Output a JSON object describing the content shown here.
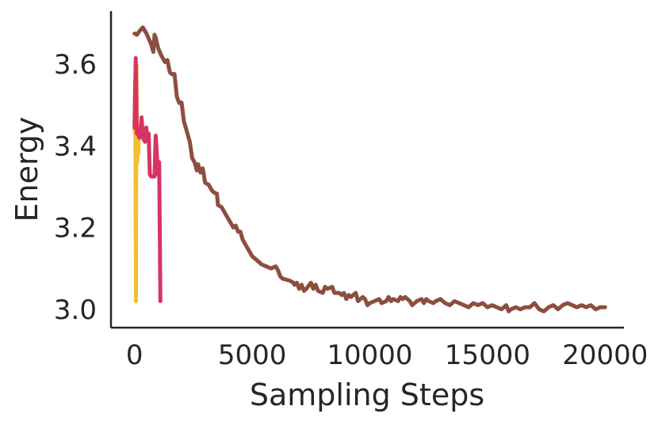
{
  "chart_data": {
    "type": "line",
    "xlabel": "Sampling Steps",
    "ylabel": "Energy",
    "xlim": [
      -1000,
      20800
    ],
    "ylim": [
      2.955,
      3.73
    ],
    "xticks": [
      0,
      5000,
      10000,
      15000,
      20000
    ],
    "yticks": [
      3.0,
      3.2,
      3.4,
      3.6
    ],
    "xtick_labels": [
      "0",
      "5000",
      "10000",
      "15000",
      "20000"
    ],
    "ytick_labels": [
      "3.0",
      "3.2",
      "3.4",
      "3.6"
    ],
    "grid": false,
    "series": [
      {
        "color": "#8c4e3f",
        "points": [
          [
            0,
            3.675
          ],
          [
            100,
            3.672
          ],
          [
            200,
            3.68
          ],
          [
            350,
            3.69
          ],
          [
            500,
            3.676
          ],
          [
            700,
            3.65
          ],
          [
            800,
            3.63
          ],
          [
            850,
            3.672
          ],
          [
            900,
            3.665
          ],
          [
            1000,
            3.64
          ],
          [
            1150,
            3.62
          ],
          [
            1300,
            3.605
          ],
          [
            1400,
            3.61
          ],
          [
            1500,
            3.58
          ],
          [
            1600,
            3.575
          ],
          [
            1700,
            3.576
          ],
          [
            1800,
            3.52
          ],
          [
            1900,
            3.505
          ],
          [
            2000,
            3.506
          ],
          [
            2100,
            3.46
          ],
          [
            2200,
            3.44
          ],
          [
            2350,
            3.41
          ],
          [
            2450,
            3.37
          ],
          [
            2550,
            3.36
          ],
          [
            2650,
            3.34
          ],
          [
            2700,
            3.355
          ],
          [
            2800,
            3.335
          ],
          [
            2900,
            3.345
          ],
          [
            3000,
            3.31
          ],
          [
            3150,
            3.305
          ],
          [
            3300,
            3.29
          ],
          [
            3400,
            3.285
          ],
          [
            3500,
            3.283
          ],
          [
            3550,
            3.255
          ],
          [
            3700,
            3.25
          ],
          [
            3800,
            3.24
          ],
          [
            3900,
            3.23
          ],
          [
            4000,
            3.22
          ],
          [
            4100,
            3.21
          ],
          [
            4200,
            3.2
          ],
          [
            4300,
            3.205
          ],
          [
            4400,
            3.19
          ],
          [
            4500,
            3.19
          ],
          [
            4600,
            3.17
          ],
          [
            4700,
            3.16
          ],
          [
            4800,
            3.15
          ],
          [
            4900,
            3.14
          ],
          [
            5000,
            3.13
          ],
          [
            5200,
            3.12
          ],
          [
            5400,
            3.11
          ],
          [
            5600,
            3.105
          ],
          [
            5800,
            3.1
          ],
          [
            6000,
            3.105
          ],
          [
            6100,
            3.095
          ],
          [
            6200,
            3.08
          ],
          [
            6300,
            3.075
          ],
          [
            6600,
            3.07
          ],
          [
            6750,
            3.065
          ],
          [
            6800,
            3.06
          ],
          [
            6900,
            3.065
          ],
          [
            7000,
            3.05
          ],
          [
            7100,
            3.06
          ],
          [
            7200,
            3.045
          ],
          [
            7300,
            3.05
          ],
          [
            7500,
            3.065
          ],
          [
            7600,
            3.05
          ],
          [
            7700,
            3.06
          ],
          [
            7800,
            3.045
          ],
          [
            8000,
            3.04
          ],
          [
            8100,
            3.055
          ],
          [
            8200,
            3.05
          ],
          [
            8400,
            3.055
          ],
          [
            8500,
            3.04
          ],
          [
            8700,
            3.04
          ],
          [
            8800,
            3.035
          ],
          [
            8900,
            3.04
          ],
          [
            9000,
            3.025
          ],
          [
            9100,
            3.035
          ],
          [
            9200,
            3.03
          ],
          [
            9400,
            3.04
          ],
          [
            9500,
            3.02
          ],
          [
            9600,
            3.025
          ],
          [
            9700,
            3.03
          ],
          [
            9800,
            3.025
          ],
          [
            9900,
            3.01
          ],
          [
            10000,
            3.015
          ],
          [
            10200,
            3.02
          ],
          [
            10400,
            3.025
          ],
          [
            10500,
            3.015
          ],
          [
            10700,
            3.02
          ],
          [
            10800,
            3.03
          ],
          [
            10900,
            3.02
          ],
          [
            11000,
            3.025
          ],
          [
            11200,
            3.02
          ],
          [
            11300,
            3.03
          ],
          [
            11400,
            3.025
          ],
          [
            11500,
            3.03
          ],
          [
            11700,
            3.02
          ],
          [
            11800,
            3.01
          ],
          [
            12000,
            3.02
          ],
          [
            12200,
            3.025
          ],
          [
            12300,
            3.015
          ],
          [
            12400,
            3.025
          ],
          [
            12500,
            3.02
          ],
          [
            12700,
            3.015
          ],
          [
            12800,
            3.02
          ],
          [
            13000,
            3.025
          ],
          [
            13200,
            3.015
          ],
          [
            13400,
            3.01
          ],
          [
            13600,
            3.02
          ],
          [
            13800,
            3.015
          ],
          [
            14000,
            3.01
          ],
          [
            14200,
            3.005
          ],
          [
            14400,
            3.015
          ],
          [
            14600,
            3.01
          ],
          [
            14800,
            3.015
          ],
          [
            15000,
            3.005
          ],
          [
            15200,
            3.01
          ],
          [
            15400,
            3.005
          ],
          [
            15600,
            3.0
          ],
          [
            15800,
            3.01
          ],
          [
            15900,
            2.995
          ],
          [
            16000,
            3.0
          ],
          [
            16200,
            3.005
          ],
          [
            16400,
            3.0
          ],
          [
            16600,
            3.005
          ],
          [
            16800,
            3.005
          ],
          [
            17000,
            3.015
          ],
          [
            17200,
            3.0
          ],
          [
            17400,
            2.995
          ],
          [
            17600,
            3.005
          ],
          [
            17800,
            3.01
          ],
          [
            18000,
            3.0
          ],
          [
            18200,
            3.01
          ],
          [
            18400,
            3.015
          ],
          [
            18600,
            3.01
          ],
          [
            18800,
            3.005
          ],
          [
            19000,
            3.01
          ],
          [
            19200,
            3.005
          ],
          [
            19400,
            3.01
          ],
          [
            19600,
            3.0
          ],
          [
            19800,
            3.005
          ],
          [
            20000,
            3.005
          ]
        ]
      },
      {
        "color": "#f2bf2f",
        "points": [
          [
            0,
            3.435
          ],
          [
            20,
            3.56
          ],
          [
            40,
            3.38
          ],
          [
            60,
            3.02
          ],
          [
            80,
            3.6
          ],
          [
            100,
            3.47
          ],
          [
            120,
            3.36
          ],
          [
            140,
            3.44
          ],
          [
            160,
            3.38
          ],
          [
            180,
            3.42
          ]
        ]
      },
      {
        "color": "#d63464",
        "points": [
          [
            0,
            3.445
          ],
          [
            50,
            3.615
          ],
          [
            100,
            3.43
          ],
          [
            150,
            3.44
          ],
          [
            200,
            3.42
          ],
          [
            250,
            3.43
          ],
          [
            300,
            3.47
          ],
          [
            350,
            3.42
          ],
          [
            400,
            3.415
          ],
          [
            450,
            3.41
          ],
          [
            500,
            3.445
          ],
          [
            550,
            3.415
          ],
          [
            600,
            3.43
          ],
          [
            650,
            3.33
          ],
          [
            700,
            3.325
          ],
          [
            850,
            3.325
          ],
          [
            900,
            3.425
          ],
          [
            1000,
            3.33
          ],
          [
            1050,
            3.36
          ],
          [
            1100,
            3.02
          ]
        ]
      }
    ]
  }
}
